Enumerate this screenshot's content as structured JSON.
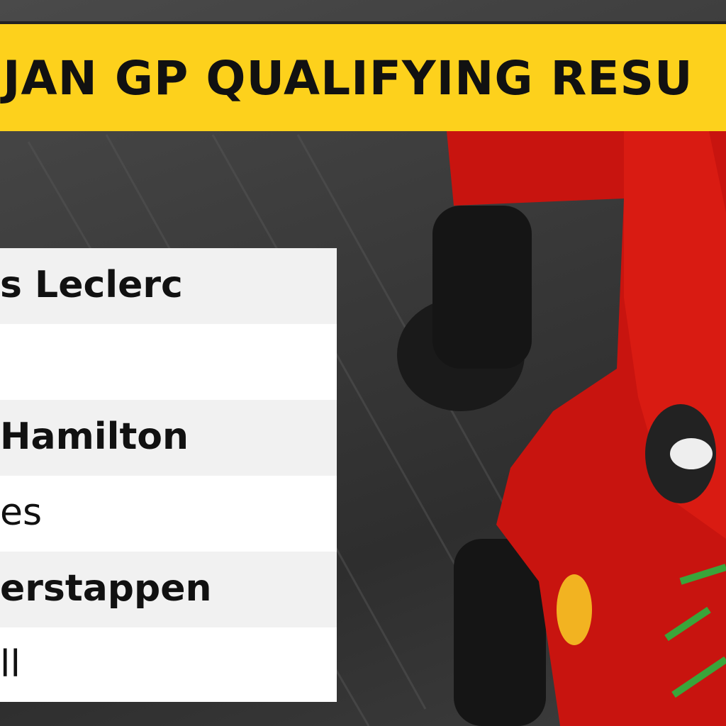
{
  "banner": {
    "title": "JAN GP QUALIFYING RESU"
  },
  "results": [
    {
      "driver": "s Leclerc"
    },
    {
      "driver": "Hamilton",
      "team": "es"
    },
    {
      "driver": "erstappen",
      "team": "ll"
    }
  ]
}
